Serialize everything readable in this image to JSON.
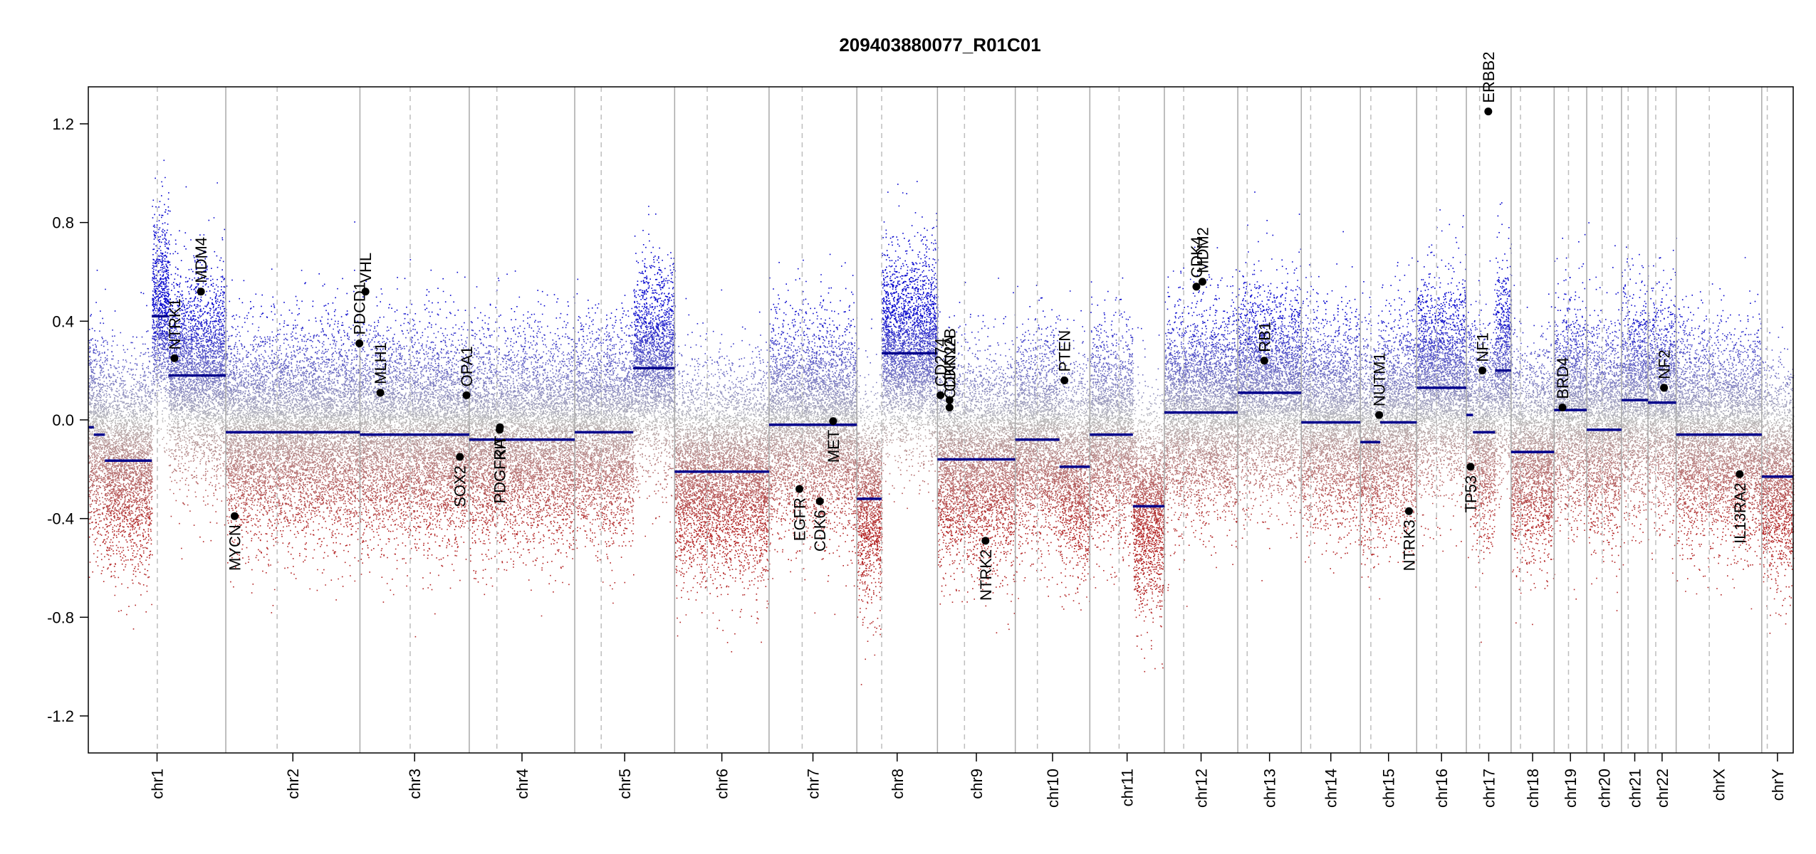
{
  "chart_data": {
    "type": "scatter",
    "title": "209403880077_R01C01",
    "xlabel": "",
    "ylabel": "",
    "ylim": [
      -1.35,
      1.35
    ],
    "y_ticks": [
      1.2,
      0.8,
      0.4,
      0.0,
      -0.4,
      -0.8,
      -1.2
    ],
    "y_tick_labels": [
      "1.2",
      "0.8",
      "0.4",
      "0.0",
      "-0.4",
      "-0.8",
      "-1.2"
    ],
    "grid": false,
    "chromosomes": [
      {
        "name": "chr1",
        "size": 249
      },
      {
        "name": "chr2",
        "size": 243
      },
      {
        "name": "chr3",
        "size": 198
      },
      {
        "name": "chr4",
        "size": 191
      },
      {
        "name": "chr5",
        "size": 181
      },
      {
        "name": "chr6",
        "size": 171
      },
      {
        "name": "chr7",
        "size": 159
      },
      {
        "name": "chr8",
        "size": 146
      },
      {
        "name": "chr9",
        "size": 141
      },
      {
        "name": "chr10",
        "size": 135
      },
      {
        "name": "chr11",
        "size": 135
      },
      {
        "name": "chr12",
        "size": 133
      },
      {
        "name": "chr13",
        "size": 115
      },
      {
        "name": "chr14",
        "size": 107
      },
      {
        "name": "chr15",
        "size": 102
      },
      {
        "name": "chr16",
        "size": 90
      },
      {
        "name": "chr17",
        "size": 81
      },
      {
        "name": "chr18",
        "size": 78
      },
      {
        "name": "chr19",
        "size": 59
      },
      {
        "name": "chr20",
        "size": 63
      },
      {
        "name": "chr21",
        "size": 48
      },
      {
        "name": "chr22",
        "size": 51
      },
      {
        "name": "chrX",
        "size": 155
      },
      {
        "name": "chrY",
        "size": 57
      }
    ],
    "centromeres": [
      {
        "chr": "chr1",
        "pos": 125
      },
      {
        "chr": "chr2",
        "pos": 93
      },
      {
        "chr": "chr3",
        "pos": 91
      },
      {
        "chr": "chr4",
        "pos": 50
      },
      {
        "chr": "chr5",
        "pos": 48
      },
      {
        "chr": "chr6",
        "pos": 59
      },
      {
        "chr": "chr7",
        "pos": 60
      },
      {
        "chr": "chr8",
        "pos": 45
      },
      {
        "chr": "chr9",
        "pos": 49
      },
      {
        "chr": "chr10",
        "pos": 40
      },
      {
        "chr": "chr11",
        "pos": 53
      },
      {
        "chr": "chr12",
        "pos": 35
      },
      {
        "chr": "chr13",
        "pos": 17
      },
      {
        "chr": "chr14",
        "pos": 17
      },
      {
        "chr": "chr15",
        "pos": 19
      },
      {
        "chr": "chr16",
        "pos": 36
      },
      {
        "chr": "chr17",
        "pos": 24
      },
      {
        "chr": "chr18",
        "pos": 17
      },
      {
        "chr": "chr19",
        "pos": 26
      },
      {
        "chr": "chr20",
        "pos": 28
      },
      {
        "chr": "chr21",
        "pos": 12
      },
      {
        "chr": "chr22",
        "pos": 14
      },
      {
        "chrX": "",
        "chr": "chrX",
        "pos": 60
      },
      {
        "chr": "chrY",
        "pos": 10
      }
    ],
    "segments": [
      {
        "chr": "chr1",
        "start": 0,
        "end": 10,
        "value": -0.03
      },
      {
        "chr": "chr1",
        "start": 10,
        "end": 30,
        "value": -0.06
      },
      {
        "chr": "chr1",
        "start": 30,
        "end": 115,
        "value": -0.165
      },
      {
        "chr": "chr1",
        "start": 115,
        "end": 145,
        "value": 0.42
      },
      {
        "chr": "chr1",
        "start": 145,
        "end": 249,
        "value": 0.18
      },
      {
        "chr": "chr2",
        "start": 0,
        "end": 243,
        "value": -0.05
      },
      {
        "chr": "chr3",
        "start": 0,
        "end": 198,
        "value": -0.06
      },
      {
        "chr": "chr4",
        "start": 0,
        "end": 191,
        "value": -0.08
      },
      {
        "chr": "chr5",
        "start": 0,
        "end": 106,
        "value": -0.05
      },
      {
        "chr": "chr5",
        "start": 106,
        "end": 181,
        "value": 0.21
      },
      {
        "chr": "chr6",
        "start": 0,
        "end": 171,
        "value": -0.21
      },
      {
        "chr": "chr7",
        "start": 0,
        "end": 159,
        "value": -0.02
      },
      {
        "chr": "chr8",
        "start": 0,
        "end": 45,
        "value": -0.32
      },
      {
        "chr": "chr8",
        "start": 45,
        "end": 146,
        "value": 0.27
      },
      {
        "chr": "chr9",
        "start": 0,
        "end": 141,
        "value": -0.16
      },
      {
        "chr": "chr10",
        "start": 0,
        "end": 80,
        "value": -0.08
      },
      {
        "chr": "chr10",
        "start": 80,
        "end": 135,
        "value": -0.19
      },
      {
        "chr": "chr11",
        "start": 0,
        "end": 78,
        "value": -0.06
      },
      {
        "chr": "chr11",
        "start": 78,
        "end": 135,
        "value": -0.35
      },
      {
        "chr": "chr12",
        "start": 0,
        "end": 133,
        "value": 0.03
      },
      {
        "chr": "chr13",
        "start": 0,
        "end": 115,
        "value": 0.11
      },
      {
        "chr": "chr14",
        "start": 0,
        "end": 107,
        "value": -0.01
      },
      {
        "chr": "chr15",
        "start": 0,
        "end": 36,
        "value": -0.09
      },
      {
        "chr": "chr15",
        "start": 36,
        "end": 102,
        "value": -0.01
      },
      {
        "chr": "chr16",
        "start": 0,
        "end": 90,
        "value": 0.13
      },
      {
        "chr": "chr17",
        "start": 0,
        "end": 12,
        "value": 0.02
      },
      {
        "chr": "chr17",
        "start": 12,
        "end": 52,
        "value": -0.05
      },
      {
        "chr": "chr17",
        "start": 52,
        "end": 81,
        "value": 0.2
      },
      {
        "chr": "chr18",
        "start": 0,
        "end": 78,
        "value": -0.13
      },
      {
        "chr": "chr19",
        "start": 0,
        "end": 59,
        "value": 0.04
      },
      {
        "chr": "chr20",
        "start": 0,
        "end": 63,
        "value": -0.04
      },
      {
        "chr": "chr21",
        "start": 0,
        "end": 48,
        "value": 0.08
      },
      {
        "chr": "chr22",
        "start": 0,
        "end": 51,
        "value": 0.07
      },
      {
        "chr": "chrX",
        "start": 0,
        "end": 155,
        "value": -0.06
      },
      {
        "chr": "chrY",
        "start": 0,
        "end": 57,
        "value": -0.23
      }
    ],
    "genes": [
      {
        "name": "NTRK1",
        "chr": "chr1",
        "pos": 156,
        "value": 0.25
      },
      {
        "name": "MDM4",
        "chr": "chr1",
        "pos": 204,
        "value": 0.52
      },
      {
        "name": "MYCN",
        "chr": "chr2",
        "pos": 16,
        "value": -0.39
      },
      {
        "name": "PDCD1",
        "chr": "chr2",
        "pos": 242,
        "value": 0.31
      },
      {
        "name": "VHL",
        "chr": "chr3",
        "pos": 10,
        "value": 0.52
      },
      {
        "name": "MLH1",
        "chr": "chr3",
        "pos": 37,
        "value": 0.11
      },
      {
        "name": "SOX2",
        "chr": "chr3",
        "pos": 181,
        "value": -0.15
      },
      {
        "name": "OPA1",
        "chr": "chr3",
        "pos": 193,
        "value": 0.1
      },
      {
        "name": "PDGFRA",
        "chr": "chr4",
        "pos": 55,
        "value": -0.04
      },
      {
        "name": "KIT",
        "chr": "chr4",
        "pos": 55.5,
        "value": -0.03
      },
      {
        "name": "EGFR",
        "chr": "chr7",
        "pos": 55,
        "value": -0.28
      },
      {
        "name": "CDK6",
        "chr": "chr7",
        "pos": 92,
        "value": -0.33
      },
      {
        "name": "MET",
        "chr": "chr7",
        "pos": 116,
        "value": -0.005
      },
      {
        "name": "CD274",
        "chr": "chr9",
        "pos": 5.5,
        "value": 0.1
      },
      {
        "name": "CDKN2A",
        "chr": "chr9",
        "pos": 21.9,
        "value": 0.05
      },
      {
        "name": "CDKN2B",
        "chr": "chr9",
        "pos": 22.0,
        "value": 0.08
      },
      {
        "name": "NTRK2",
        "chr": "chr9",
        "pos": 87,
        "value": -0.49
      },
      {
        "name": "PTEN",
        "chr": "chr10",
        "pos": 89,
        "value": 0.16
      },
      {
        "name": "CDK4",
        "chr": "chr12",
        "pos": 58,
        "value": 0.54
      },
      {
        "name": "MDM2",
        "chr": "chr12",
        "pos": 69,
        "value": 0.56
      },
      {
        "name": "RB1",
        "chr": "chr13",
        "pos": 48,
        "value": 0.24
      },
      {
        "name": "NUTM1",
        "chr": "chr15",
        "pos": 34,
        "value": 0.02
      },
      {
        "name": "NTRK3",
        "chr": "chr15",
        "pos": 88,
        "value": -0.37
      },
      {
        "name": "TP53",
        "chr": "chr17",
        "pos": 7.6,
        "value": -0.19
      },
      {
        "name": "NF1",
        "chr": "chr17",
        "pos": 29,
        "value": 0.2
      },
      {
        "name": "ERBB2",
        "chr": "chr17",
        "pos": 39.7,
        "value": 1.25
      },
      {
        "name": "BRD4",
        "chr": "chr19",
        "pos": 15,
        "value": 0.05
      },
      {
        "name": "NF2",
        "chr": "chr22",
        "pos": 29,
        "value": 0.13
      },
      {
        "name": "IL13RA2",
        "chr": "chrX",
        "pos": 115,
        "value": -0.22
      }
    ],
    "colors": {
      "segment": "#00008B",
      "gain": "#0000CD",
      "loss": "#B22222",
      "neutral": "#B8B8B8",
      "border": "#A9A9A9",
      "centromere": "#BEBEBE",
      "gene_point": "#000000"
    }
  }
}
